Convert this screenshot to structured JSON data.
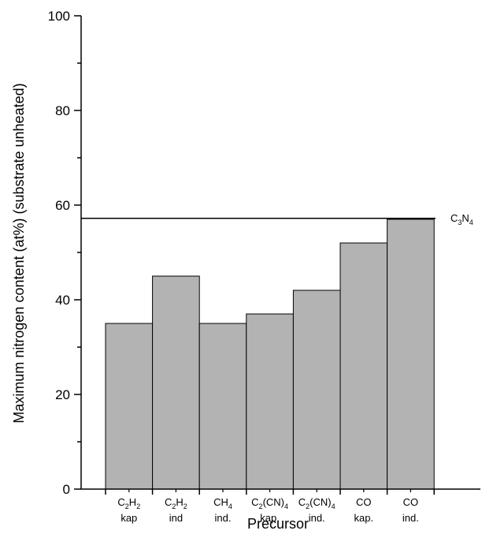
{
  "chart_data": {
    "type": "bar",
    "categories": [
      {
        "line1": "C",
        "sub1": "2",
        "line1b": "H",
        "sub1b": "2",
        "line2": "kap"
      },
      {
        "line1": "C",
        "sub1": "2",
        "line1b": "H",
        "sub1b": "2",
        "line2": "ind"
      },
      {
        "line1": "CH",
        "sub1": "4",
        "line1b": "",
        "sub1b": "",
        "line2": "ind."
      },
      {
        "line1": "C",
        "sub1": "2",
        "line1b": "(CN)",
        "sub1b": "4",
        "line2": "kap."
      },
      {
        "line1": "C",
        "sub1": "2",
        "line1b": "(CN)",
        "sub1b": "4",
        "line2": "ind."
      },
      {
        "line1": "CO",
        "sub1": "",
        "line1b": "",
        "sub1b": "",
        "line2": "kap."
      },
      {
        "line1": "CO",
        "sub1": "",
        "line1b": "",
        "sub1b": "",
        "line2": "ind."
      }
    ],
    "values": [
      35,
      45,
      35,
      37,
      42,
      52,
      57
    ],
    "reference_line": {
      "value": 57.2,
      "label": {
        "a": "C",
        "a_sub": "3",
        "b": "N",
        "b_sub": "4"
      }
    },
    "xlabel": "Precursor",
    "ylabel": "Maximum nitrogen content (at%) (substrate unheated)",
    "ylim": [
      0,
      100
    ],
    "yticks": [
      "0",
      "20",
      "40",
      "60",
      "80",
      "100"
    ],
    "grid": false,
    "bar_color": "#b3b3b3"
  }
}
